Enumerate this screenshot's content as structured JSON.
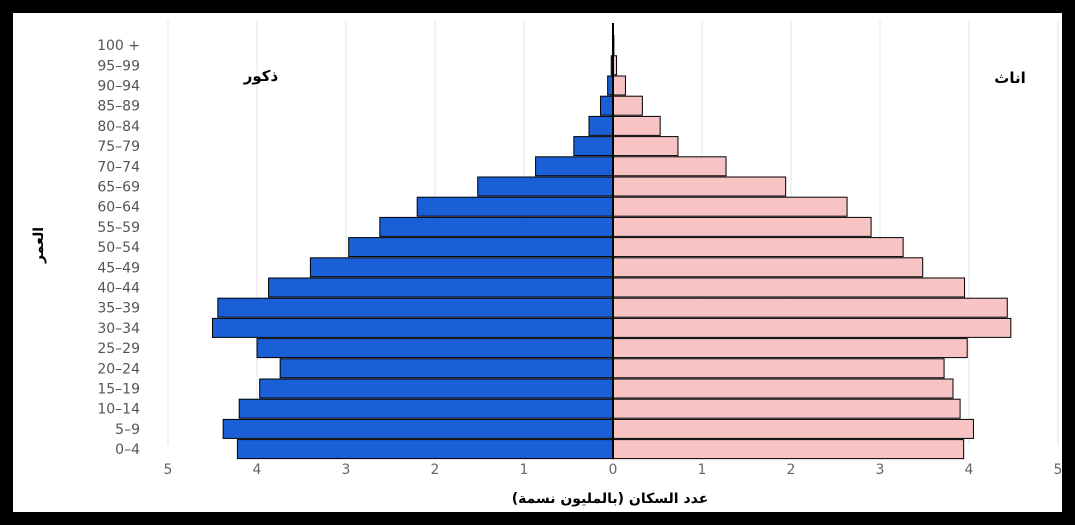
{
  "chart_data": {
    "type": "bar",
    "orientation": "horizontal",
    "subtype": "population-pyramid",
    "categories": [
      "0-4",
      "5-9",
      "10-14",
      "15-19",
      "20-24",
      "25-29",
      "30-34",
      "35-39",
      "40-44",
      "45-49",
      "50-54",
      "55-59",
      "60-64",
      "65-69",
      "70-74",
      "75-79",
      "80-84",
      "85-89",
      "90-94",
      "95-99",
      "100 +"
    ],
    "series": [
      {
        "name": "ذكور",
        "color": "#1a5fd6",
        "values": [
          4.22,
          4.38,
          4.2,
          3.97,
          3.74,
          4.0,
          4.5,
          4.44,
          3.87,
          3.4,
          2.97,
          2.62,
          2.2,
          1.52,
          0.87,
          0.44,
          0.27,
          0.14,
          0.06,
          0.02,
          0.005
        ]
      },
      {
        "name": "اناث",
        "color": "#f7c3c3",
        "values": [
          3.94,
          4.05,
          3.9,
          3.82,
          3.72,
          3.98,
          4.47,
          4.43,
          3.95,
          3.48,
          3.26,
          2.9,
          2.63,
          1.94,
          1.27,
          0.73,
          0.53,
          0.33,
          0.14,
          0.04,
          0.01
        ]
      }
    ],
    "xlabel": "عدد السكان (بالمليون نسمة)",
    "ylabel": "العمر",
    "xlim": [
      -5,
      5
    ],
    "x_ticks": [
      5,
      4,
      3,
      2,
      1,
      0,
      1,
      2,
      3,
      4,
      5
    ],
    "grid": true
  }
}
